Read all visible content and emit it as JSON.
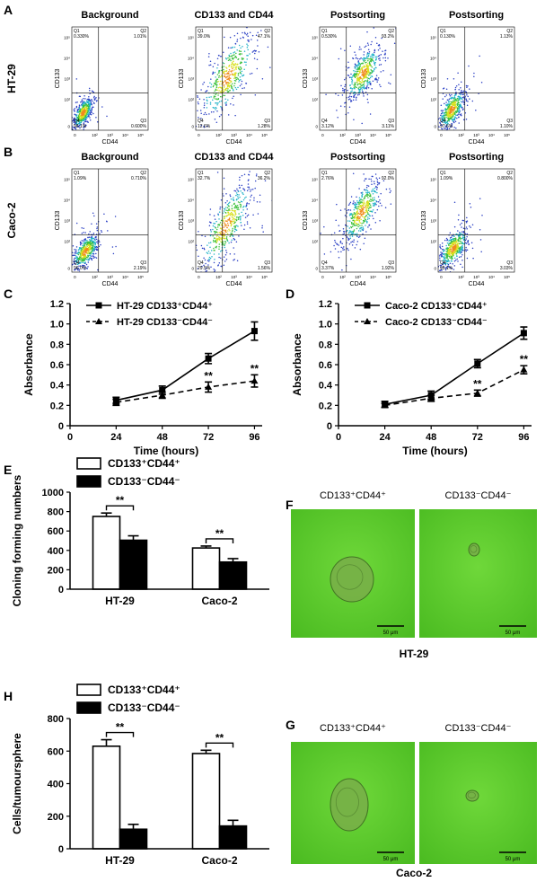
{
  "flow": {
    "x_label": "CD44",
    "y_label": "CD133",
    "quadrant_names": [
      "Q1",
      "Q2",
      "Q3",
      "Q4"
    ],
    "ticks": [
      "0",
      "10²",
      "10³",
      "10⁴",
      "10⁵"
    ],
    "rows": [
      {
        "letter": "A",
        "label": "HT-29",
        "plots": [
          {
            "title": "Background",
            "quadrants": [
              "0.330%",
              "1.01%",
              "0.600%",
              "98.1%"
            ]
          },
          {
            "title": "CD133 and CD44",
            "quadrants": [
              "39.0%",
              "47.1%",
              "1.28%",
              "12.6%"
            ]
          },
          {
            "title": "Postsorting",
            "quadrants": [
              "0.530%",
              "93.2%",
              "3.11%",
              "3.12%"
            ]
          },
          {
            "title": "Postsorting",
            "quadrants": [
              "0.130%",
              "1.13%",
              "1.10%",
              "97.6%"
            ]
          }
        ]
      },
      {
        "letter": "B",
        "label": "Caco-2",
        "plots": [
          {
            "title": "Background",
            "quadrants": [
              "1.09%",
              "0.710%",
              "2.19%",
              "96.0%"
            ]
          },
          {
            "title": "CD133 and CD44",
            "quadrants": [
              "32.7%",
              "36.2%",
              "1.56%",
              "29.5%"
            ]
          },
          {
            "title": "Postsorting",
            "quadrants": [
              "2.76%",
              "92.0%",
              "1.92%",
              "3.37%"
            ]
          },
          {
            "title": "Postsorting",
            "quadrants": [
              "1.09%",
              "0.800%",
              "3.03%",
              "95.1%"
            ]
          }
        ]
      }
    ]
  },
  "chart_data": [
    {
      "type": "line",
      "panel": "C",
      "x_label": "Time (hours)",
      "y_label": "Absorbance",
      "x": [
        24,
        48,
        72,
        96
      ],
      "xlim": [
        0,
        100
      ],
      "xticks": [
        0,
        24,
        48,
        72,
        96
      ],
      "ylim": [
        0,
        1.2
      ],
      "yticks": [
        0,
        0.2,
        0.4,
        0.6,
        0.8,
        {
          "value": 1,
          "label": "1.0"
        },
        1.2
      ],
      "series": [
        {
          "name": "HT-29 CD133⁺CD44⁺",
          "color": "#000000",
          "line_style": "solid",
          "marker": "square",
          "values": [
            0.25,
            0.35,
            0.66,
            0.93
          ],
          "errors": [
            0.03,
            0.04,
            0.05,
            0.09
          ]
        },
        {
          "name": "HT-29 CD133⁻CD44⁻",
          "color": "#000000",
          "line_style": "dashed",
          "marker": "triangle",
          "values": [
            0.23,
            0.3,
            0.38,
            0.44
          ],
          "errors": [
            0.03,
            0.03,
            0.05,
            0.06
          ]
        }
      ],
      "annotations": [
        {
          "text": "**",
          "x": 72
        },
        {
          "text": "**",
          "x": 96
        }
      ]
    },
    {
      "type": "line",
      "panel": "D",
      "x_label": "Time (hours)",
      "y_label": "Absorbance",
      "x": [
        24,
        48,
        72,
        96
      ],
      "xlim": [
        0,
        100
      ],
      "xticks": [
        0,
        24,
        48,
        72,
        96
      ],
      "ylim": [
        0,
        1.2
      ],
      "yticks": [
        0,
        0.2,
        0.4,
        0.6,
        0.8,
        {
          "value": 1,
          "label": "1.0"
        },
        1.2
      ],
      "series": [
        {
          "name": "Caco-2 CD133⁺CD44⁺",
          "color": "#000000",
          "line_style": "solid",
          "marker": "square",
          "values": [
            0.21,
            0.3,
            0.61,
            0.91
          ],
          "errors": [
            0.03,
            0.04,
            0.04,
            0.06
          ]
        },
        {
          "name": "Caco-2 CD133⁻CD44⁻",
          "color": "#000000",
          "line_style": "dashed",
          "marker": "triangle",
          "values": [
            0.2,
            0.27,
            0.32,
            0.55
          ],
          "errors": [
            0.02,
            0.03,
            0.03,
            0.04
          ]
        }
      ],
      "annotations": [
        {
          "text": "**",
          "x": 72
        },
        {
          "text": "**",
          "x": 96
        }
      ]
    },
    {
      "type": "bar",
      "panel": "E",
      "y_label": "Cloning forming numbers",
      "categories": [
        "HT-29",
        "Caco-2"
      ],
      "ylim": [
        0,
        1000
      ],
      "yticks": [
        0,
        200,
        400,
        600,
        800,
        1000
      ],
      "series": [
        {
          "name": "CD133⁺CD44⁺",
          "color": "#ffffff",
          "values": [
            750,
            425
          ],
          "errors": [
            35,
            20
          ]
        },
        {
          "name": "CD133⁻CD44⁻",
          "color": "#000000",
          "values": [
            505,
            280
          ],
          "errors": [
            45,
            35
          ]
        }
      ],
      "annotations": [
        {
          "text": "**",
          "category": "HT-29"
        },
        {
          "text": "**",
          "category": "Caco-2"
        }
      ]
    },
    {
      "type": "bar",
      "panel": "H",
      "y_label": "Cells/tumoursphere",
      "categories": [
        "HT-29",
        "Caco-2"
      ],
      "ylim": [
        0,
        800
      ],
      "yticks": [
        0,
        200,
        400,
        600,
        800
      ],
      "series": [
        {
          "name": "CD133⁺CD44⁺",
          "color": "#ffffff",
          "values": [
            630,
            585
          ],
          "errors": [
            40,
            20
          ]
        },
        {
          "name": "CD133⁻CD44⁻",
          "color": "#000000",
          "values": [
            120,
            140
          ],
          "errors": [
            30,
            35
          ]
        }
      ],
      "annotations": [
        {
          "text": "**",
          "category": "HT-29"
        },
        {
          "text": "**",
          "category": "Caco-2"
        }
      ]
    }
  ],
  "images": [
    {
      "letter": "F",
      "labels": [
        "CD133⁺CD44⁺",
        "CD133⁻CD44⁻"
      ],
      "scale_bar": "50 μm",
      "caption": "HT-29"
    },
    {
      "letter": "G",
      "labels": [
        "CD133⁺CD44⁺",
        "CD133⁻CD44⁻"
      ],
      "scale_bar": "50 μm",
      "caption": "Caco-2"
    }
  ]
}
